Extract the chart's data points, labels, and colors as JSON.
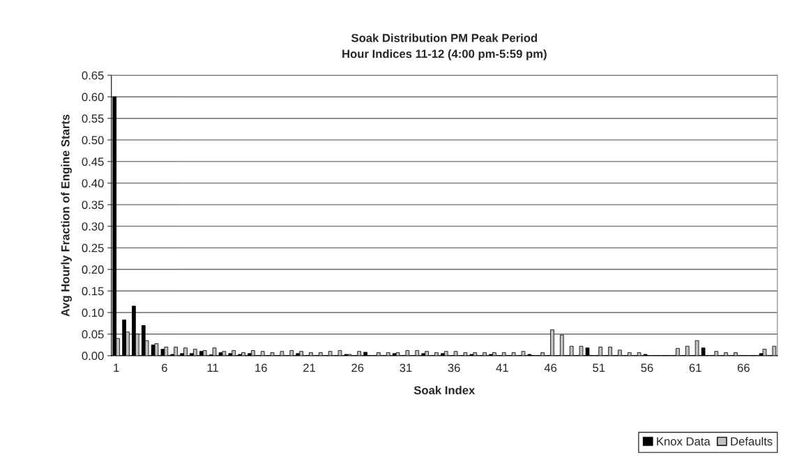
{
  "chart_data": {
    "type": "bar",
    "title": "Soak Distribution PM Peak Period\nHour Indices 11-12 (4:00 pm-5:59 pm)",
    "xlabel": "Soak Index",
    "ylabel": "Avg Hourly Fraction of Engine Starts",
    "categories": [
      "1",
      null,
      null,
      null,
      null,
      "6",
      null,
      null,
      null,
      null,
      "11",
      null,
      null,
      null,
      null,
      "16",
      null,
      null,
      null,
      null,
      "21",
      null,
      null,
      null,
      null,
      "26",
      null,
      null,
      null,
      null,
      "31",
      null,
      null,
      null,
      null,
      "36",
      null,
      null,
      null,
      null,
      "41",
      null,
      null,
      null,
      null,
      "46",
      null,
      null,
      null,
      null,
      "51",
      null,
      null,
      null,
      null,
      "56",
      null,
      null,
      null,
      null,
      "61",
      null,
      null,
      null,
      null,
      "66",
      null,
      null,
      null
    ],
    "series": [
      {
        "name": "Knox Data",
        "color": "#000000",
        "values": [
          0.6,
          0.083,
          0.115,
          0.07,
          0.025,
          0.015,
          0.003,
          0.005,
          0.005,
          0.01,
          0.002,
          0.007,
          0.005,
          0.003,
          0.005,
          0,
          0,
          0,
          0,
          0.005,
          0,
          0,
          0,
          0,
          0.003,
          0,
          0.008,
          0,
          0,
          0.005,
          0,
          0,
          0.005,
          0,
          0.005,
          0,
          0,
          0.003,
          0,
          0.003,
          0,
          0,
          0,
          0.003,
          0,
          0,
          0,
          0,
          0,
          0.018,
          0,
          0,
          0,
          0,
          0,
          0.003,
          0,
          0,
          0,
          0,
          0,
          0.018,
          0,
          0,
          0,
          0,
          0,
          0.005,
          0
        ]
      },
      {
        "name": "Defaults",
        "color": "#c0c0c0",
        "values": [
          0.04,
          0.055,
          0.05,
          0.035,
          0.028,
          0.02,
          0.02,
          0.018,
          0.015,
          0.012,
          0.018,
          0.01,
          0.012,
          0.007,
          0.012,
          0.01,
          0.007,
          0.01,
          0.012,
          0.01,
          0.007,
          0.007,
          0.01,
          0.012,
          0.003,
          0.01,
          0,
          0.007,
          0.007,
          0.007,
          0.012,
          0.012,
          0.01,
          0.007,
          0.01,
          0.01,
          0.007,
          0.007,
          0.007,
          0.007,
          0.007,
          0.007,
          0.01,
          0,
          0.007,
          0.06,
          0.048,
          0.022,
          0.022,
          0,
          0.02,
          0.02,
          0.013,
          0.007,
          0.007,
          0,
          0,
          0,
          0.017,
          0.022,
          0.035,
          0,
          0.01,
          0.007,
          0.007,
          0,
          0,
          0.015,
          0.022
        ]
      }
    ],
    "ylim": [
      0,
      0.65
    ],
    "yticks": [
      {
        "value": 0,
        "label": "0.00"
      },
      {
        "value": 0.05,
        "label": "0.05"
      },
      {
        "value": 0.1,
        "label": "0.10"
      },
      {
        "value": 0.15,
        "label": "0.15"
      },
      {
        "value": 0.2,
        "label": "0.20"
      },
      {
        "value": 0.25,
        "label": "0.25"
      },
      {
        "value": 0.3,
        "label": "0.30"
      },
      {
        "value": 0.35,
        "label": "0.35"
      },
      {
        "value": 0.4,
        "label": "0.40"
      },
      {
        "value": 0.45,
        "label": "0.45"
      },
      {
        "value": 0.5,
        "label": "0.50"
      },
      {
        "value": 0.55,
        "label": "0.55"
      },
      {
        "value": 0.6,
        "label": "0.60"
      },
      {
        "value": 0.65,
        "label": "0.65"
      }
    ],
    "grid": "y",
    "legend": "bottom right"
  }
}
